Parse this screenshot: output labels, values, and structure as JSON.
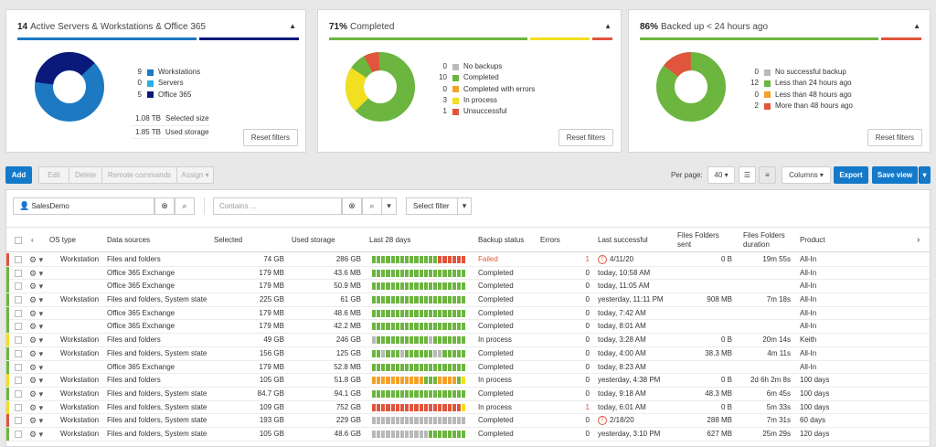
{
  "panels": [
    {
      "count": "14",
      "title": "Active Servers & Workstations & Office 365",
      "legend": [
        {
          "n": "9",
          "label": "Workstations",
          "color": "#1c79c2"
        },
        {
          "n": "0",
          "label": "Servers",
          "color": "#26aee8"
        },
        {
          "n": "5",
          "label": "Office 365",
          "color": "#0b1a7a"
        }
      ],
      "sizes": [
        {
          "n": "1.08 TB",
          "label": "Selected size"
        },
        {
          "n": "1.85 TB",
          "label": "Used storage"
        }
      ],
      "reset": "Reset filters"
    },
    {
      "count": "71%",
      "title": "Completed",
      "legend": [
        {
          "n": "0",
          "label": "No backups",
          "color": "#b9b9b9"
        },
        {
          "n": "10",
          "label": "Completed",
          "color": "#6cb53f"
        },
        {
          "n": "0",
          "label": "Completed with errors",
          "color": "#f2a12a"
        },
        {
          "n": "3",
          "label": "In process",
          "color": "#f2df1f"
        },
        {
          "n": "1",
          "label": "Unsuccessful",
          "color": "#e0553c"
        }
      ],
      "reset": "Reset filters"
    },
    {
      "count": "86%",
      "title": "Backed up < 24 hours ago",
      "legend": [
        {
          "n": "0",
          "label": "No successful backup",
          "color": "#b9b9b9"
        },
        {
          "n": "12",
          "label": "Less than 24 hours ago",
          "color": "#6cb53f"
        },
        {
          "n": "0",
          "label": "Less than 48 hours ago",
          "color": "#f2a12a"
        },
        {
          "n": "2",
          "label": "More than 48 hours ago",
          "color": "#e0553c"
        }
      ],
      "reset": "Reset filters"
    }
  ],
  "toolbar": {
    "add": "Add",
    "edit": "Edit",
    "delete": "Delete",
    "remote": "Remote commands",
    "assign": "Assign",
    "per_page_label": "Per page:",
    "per_page_value": "40",
    "columns": "Columns",
    "export": "Export",
    "save_view": "Save view"
  },
  "filters": {
    "customer": "SalesDemo",
    "contains_placeholder": "Contains ...",
    "select_filter": "Select filter"
  },
  "columns": {
    "os": "OS type",
    "sources": "Data sources",
    "selected": "Selected",
    "used": "Used storage",
    "last28": "Last 28 days",
    "status": "Backup status",
    "errors": "Errors",
    "last_success": "Last successful",
    "files_sent": "Files Folders sent",
    "files_dur": "Files Folders duration",
    "product": "Product"
  },
  "colors": {
    "green": "#6cb53f",
    "red": "#e0553c",
    "yellow": "#f2df1f",
    "orange": "#f2a12a",
    "gray": "#b9b9b9"
  },
  "rows": [
    {
      "stripe": "red",
      "os": "Workstation",
      "src": "Files and folders",
      "sel": "74 GB",
      "used": "286 GB",
      "status": "Failed",
      "err": "1",
      "last": "4/11/20",
      "warn": true,
      "sent": "0 B",
      "dur": "19m 55s",
      "prod": "All-In",
      "bars": "GGGGGGGGGGGGGGRRRRRR"
    },
    {
      "stripe": "green",
      "os": "",
      "src": "Office 365 Exchange",
      "sel": "179 MB",
      "used": "43.6 MB",
      "status": "Completed",
      "err": "0",
      "last": "today, 10:58 AM",
      "sent": "",
      "dur": "",
      "prod": "All-In",
      "bars": "GGGGGGGGGGGGGGGGGGGG"
    },
    {
      "stripe": "green",
      "os": "",
      "src": "Office 365 Exchange",
      "sel": "179 MB",
      "used": "50.9 MB",
      "status": "Completed",
      "err": "0",
      "last": "today, 11:05 AM",
      "sent": "",
      "dur": "",
      "prod": "All-In",
      "bars": "GGGGGGGGGGGGGGGGGGGG"
    },
    {
      "stripe": "green",
      "os": "Workstation",
      "src": "Files and folders, System state",
      "sel": "225 GB",
      "used": "61 GB",
      "status": "Completed",
      "err": "0",
      "last": "yesterday, 11:11 PM",
      "sent": "908 MB",
      "dur": "7m 18s",
      "prod": "All-In",
      "bars": "GGGGGGGGGGGGGGGGGGGG"
    },
    {
      "stripe": "green",
      "os": "",
      "src": "Office 365 Exchange",
      "sel": "179 MB",
      "used": "48.6 MB",
      "status": "Completed",
      "err": "0",
      "last": "today, 7:42 AM",
      "sent": "",
      "dur": "",
      "prod": "All-In",
      "bars": "GGGGGGGGGGGGGGGGGGGG"
    },
    {
      "stripe": "green",
      "os": "",
      "src": "Office 365 Exchange",
      "sel": "179 MB",
      "used": "42.2 MB",
      "status": "Completed",
      "err": "0",
      "last": "today, 8:01 AM",
      "sent": "",
      "dur": "",
      "prod": "All-In",
      "bars": "GGGGGGGGGGGGGGGGGGGG"
    },
    {
      "stripe": "yellow",
      "os": "Workstation",
      "src": "Files and folders",
      "sel": "49 GB",
      "used": "246 GB",
      "status": "In process",
      "err": "0",
      "last": "today, 3:28 AM",
      "sent": "0 B",
      "dur": "20m 14s",
      "prod": "Keith",
      "bars": "SGGGGGGGGGGGSGGGGGGG"
    },
    {
      "stripe": "green",
      "os": "Workstation",
      "src": "Files and folders, System state",
      "sel": "156 GB",
      "used": "125 GB",
      "status": "Completed",
      "err": "0",
      "last": "today, 4:00 AM",
      "sent": "38.3 MB",
      "dur": "4m 11s",
      "prod": "All-In",
      "bars": "GGSGGGSGGGGGGSSGGGGG"
    },
    {
      "stripe": "green",
      "os": "",
      "src": "Office 365 Exchange",
      "sel": "179 MB",
      "used": "52.8 MB",
      "status": "Completed",
      "err": "0",
      "last": "today, 8:23 AM",
      "sent": "",
      "dur": "",
      "prod": "All-In",
      "bars": "GGGGGGGGGGGGGGGGGGGG"
    },
    {
      "stripe": "yellow",
      "os": "Workstation",
      "src": "Files and folders",
      "sel": "105 GB",
      "used": "51.8 GB",
      "status": "In process",
      "err": "0",
      "last": "yesterday, 4:38 PM",
      "sent": "0 B",
      "dur": "2d 6h 2m 8s",
      "prod": "100 days",
      "bars": "OOOOOOOOOOOGGGOOOOGY"
    },
    {
      "stripe": "green",
      "os": "Workstation",
      "src": "Files and folders, System state",
      "sel": "84.7 GB",
      "used": "94.1 GB",
      "status": "Completed",
      "err": "0",
      "last": "today, 9:18 AM",
      "sent": "48.3 MB",
      "dur": "6m 45s",
      "prod": "100 days",
      "bars": "GGGGGGGGGGGGGGGGGGGG"
    },
    {
      "stripe": "yellow",
      "os": "Workstation",
      "src": "Files and folders, System state",
      "sel": "109 GB",
      "used": "752 GB",
      "status": "In process",
      "err": "1",
      "last": "today, 6:01 AM",
      "sent": "0 B",
      "dur": "5m 33s",
      "prod": "100 days",
      "bars": "RRRRRRRRRRRRRRRRRRRY"
    },
    {
      "stripe": "red",
      "os": "Workstation",
      "src": "Files and folders, System state",
      "sel": "193 GB",
      "used": "229 GB",
      "status": "Completed",
      "err": "0",
      "last": "2/18/20",
      "warn": true,
      "sent": "288 MB",
      "dur": "7m 31s",
      "prod": "60 days",
      "bars": "SSSSSSSSSSSSSSSSSSSS"
    },
    {
      "stripe": "green",
      "os": "Workstation",
      "src": "Files and folders, System state",
      "sel": "105 GB",
      "used": "48.6 GB",
      "status": "Completed",
      "err": "0",
      "last": "yesterday, 3:10 PM",
      "sent": "627 MB",
      "dur": "25m 29s",
      "prod": "120 days",
      "bars": "SSSSSSSSSSSSGGGGGGGG"
    }
  ]
}
